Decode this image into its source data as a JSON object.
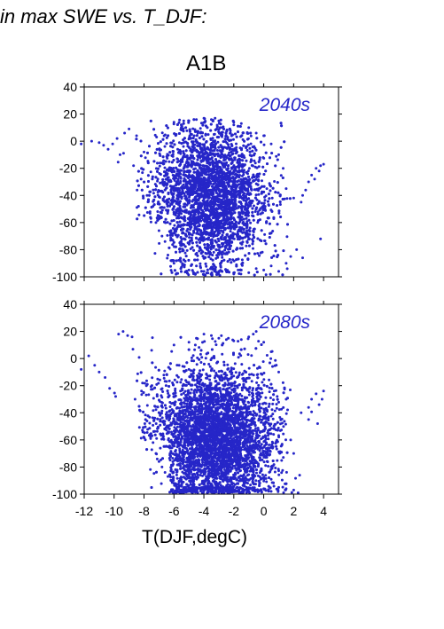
{
  "heading": "in max SWE vs. T_DJF:",
  "scenario": "A1B",
  "xlabel": "T(DJF,degC)",
  "accent_color": "#2626c8",
  "chart_data": [
    {
      "type": "scatter",
      "title": "A1B",
      "annotation": "2040s",
      "xlabel": "T(DJF,degC)",
      "ylabel": "",
      "xlim": [
        -12,
        5
      ],
      "ylim": [
        -100,
        40
      ],
      "xticks": [
        -12,
        -10,
        -8,
        -6,
        -4,
        -2,
        0,
        2,
        4
      ],
      "yticks": [
        -100,
        -80,
        -60,
        -40,
        -20,
        0,
        20,
        40
      ],
      "grid": false,
      "color": "#2626c8",
      "series": [
        {
          "points": [
            [
              -12.2,
              -2
            ],
            [
              -11.5,
              0
            ],
            [
              -11,
              -1
            ],
            [
              -10.7,
              -3
            ],
            [
              -10.4,
              -6
            ],
            [
              -10.1,
              -2
            ],
            [
              -9.8,
              2
            ],
            [
              -9.6,
              -10
            ],
            [
              -9.3,
              6
            ],
            [
              -9,
              9
            ],
            [
              -8.7,
              -18
            ],
            [
              -8.5,
              4
            ],
            [
              -8.2,
              -28
            ],
            [
              -8,
              -8
            ],
            [
              -7.8,
              -40
            ],
            [
              -7.6,
              -52
            ],
            [
              -7.4,
              -48
            ],
            [
              -7.2,
              -60
            ],
            [
              -7,
              -66
            ],
            [
              -6.8,
              -70
            ],
            [
              -6.6,
              -74
            ],
            [
              -6.4,
              -84
            ],
            [
              -6.2,
              -88
            ],
            [
              -6,
              -90
            ],
            [
              -5.5,
              -93
            ],
            [
              -5,
              -95
            ],
            [
              -4.5,
              -92
            ],
            [
              -4,
              -96
            ],
            [
              -3.5,
              -94
            ],
            [
              -3,
              -97
            ],
            [
              -2.5,
              -96
            ],
            [
              -2,
              -98
            ],
            [
              -1.5,
              -95
            ],
            [
              -1,
              -97
            ],
            [
              -0.5,
              -94
            ],
            [
              0,
              -95
            ],
            [
              0.5,
              -92
            ],
            [
              1,
              -96
            ],
            [
              1.5,
              -90
            ],
            [
              1.8,
              -85
            ],
            [
              -6,
              14
            ],
            [
              -5,
              15
            ],
            [
              -4.5,
              16
            ],
            [
              -4,
              17
            ],
            [
              -3.5,
              16
            ],
            [
              -3,
              15
            ],
            [
              -2,
              14
            ],
            [
              -1.5,
              13
            ],
            [
              -1,
              10
            ],
            [
              -0.5,
              6
            ],
            [
              0,
              4
            ],
            [
              0.5,
              -2
            ],
            [
              1,
              -10
            ],
            [
              1.3,
              -20
            ],
            [
              1.5,
              -35
            ],
            [
              2,
              -42
            ],
            [
              2.5,
              -45
            ],
            [
              3,
              -30
            ],
            [
              3.2,
              -25
            ],
            [
              3.5,
              -20
            ],
            [
              3.8,
              -18
            ],
            [
              4,
              -17
            ],
            [
              3.7,
              -22
            ],
            [
              3.4,
              -28
            ],
            [
              2.8,
              -36
            ],
            [
              2.6,
              -40
            ],
            [
              3.8,
              -72
            ],
            [
              2.2,
              -80
            ],
            [
              2.6,
              -86
            ]
          ],
          "cloud": {
            "x_mean": -3.6,
            "x_sd": 1.9,
            "y_mean": -40,
            "y_sd": 26,
            "n": 5000
          }
        }
      ]
    },
    {
      "type": "scatter",
      "title": "",
      "annotation": "2080s",
      "xlabel": "T(DJF,degC)",
      "ylabel": "",
      "xlim": [
        -12,
        5
      ],
      "ylim": [
        -100,
        40
      ],
      "xticks": [
        -12,
        -10,
        -8,
        -6,
        -4,
        -2,
        0,
        2,
        4
      ],
      "yticks": [
        -100,
        -80,
        -60,
        -40,
        -20,
        0,
        20,
        40
      ],
      "grid": false,
      "color": "#2626c8",
      "series": [
        {
          "points": [
            [
              -12.2,
              -8
            ],
            [
              -11.7,
              2
            ],
            [
              -11.3,
              -5
            ],
            [
              -11,
              -10
            ],
            [
              -10.6,
              -14
            ],
            [
              -10.3,
              -22
            ],
            [
              -9.9,
              -28
            ],
            [
              -9.7,
              18
            ],
            [
              -9.4,
              20
            ],
            [
              -9.1,
              17
            ],
            [
              -8.8,
              16
            ],
            [
              -8.6,
              -30
            ],
            [
              -8.3,
              -38
            ],
            [
              -8.1,
              -18
            ],
            [
              -7.8,
              -46
            ],
            [
              -7.6,
              -56
            ],
            [
              -7.4,
              -62
            ],
            [
              -7.2,
              -70
            ],
            [
              -7,
              -76
            ],
            [
              -6.8,
              -80
            ],
            [
              -6.6,
              -84
            ],
            [
              -6.4,
              -87
            ],
            [
              -6.2,
              -90
            ],
            [
              -6,
              -92
            ],
            [
              -5.5,
              -94
            ],
            [
              -5,
              -96
            ],
            [
              -4.5,
              -95
            ],
            [
              -4,
              -97
            ],
            [
              -3.5,
              -98
            ],
            [
              -3,
              -96
            ],
            [
              -2.5,
              -98
            ],
            [
              -2,
              -97
            ],
            [
              -1.5,
              -99
            ],
            [
              -1,
              -98
            ],
            [
              -0.5,
              -97
            ],
            [
              0,
              -96
            ],
            [
              0.5,
              -98
            ],
            [
              1,
              -95
            ],
            [
              1.5,
              -96
            ],
            [
              2,
              -97
            ],
            [
              2.3,
              -99
            ],
            [
              -6,
              10
            ],
            [
              -5,
              12
            ],
            [
              -4.5,
              15
            ],
            [
              -4,
              18
            ],
            [
              -3.5,
              17
            ],
            [
              -3,
              15
            ],
            [
              -2.5,
              14
            ],
            [
              -2,
              13
            ],
            [
              -1.5,
              14
            ],
            [
              -1,
              16
            ],
            [
              -0.7,
              18
            ],
            [
              -0.5,
              20
            ],
            [
              0,
              12
            ],
            [
              0.5,
              5
            ],
            [
              1,
              -10
            ],
            [
              1.5,
              -30
            ],
            [
              1.8,
              -60
            ],
            [
              2,
              -70
            ],
            [
              2.5,
              -40
            ],
            [
              3,
              -36
            ],
            [
              3.2,
              -30
            ],
            [
              3.5,
              -26
            ],
            [
              3.7,
              -34
            ],
            [
              3.9,
              -30
            ],
            [
              4,
              -24
            ],
            [
              3,
              -45
            ],
            [
              3.6,
              -48
            ],
            [
              2.4,
              -86
            ]
          ],
          "cloud": {
            "x_mean": -3.3,
            "x_sd": 2.0,
            "y_mean": -58,
            "y_sd": 26,
            "n": 5400
          }
        }
      ]
    }
  ]
}
